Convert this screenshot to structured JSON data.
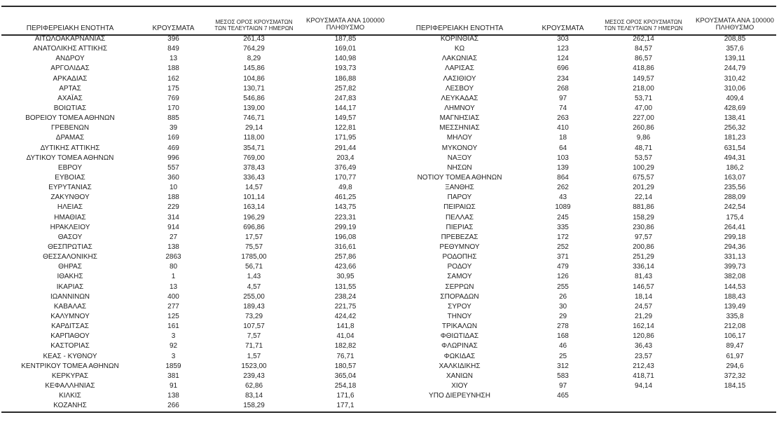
{
  "colors": {
    "background": "#ffffff",
    "text": "#1f1f1f",
    "rule_line": "#2a2a2a"
  },
  "tables": [
    {
      "headers": {
        "region": "ΠΕΡΙΦΕΡΕΙΑΚΗ ΕΝΟΤΗΤΑ",
        "cases": "ΚΡΟΥΣΜΑΤΑ",
        "avg7": "ΜΕΣΟΣ ΟΡΟΣ ΚΡΟΥΣΜΑΤΩΝ\nΤΩΝ ΤΕΛΕΥΤΑΙΩΝ 7 ΗΜΕΡΩΝ",
        "per100k": "ΚΡΟΥΣΜΑΤΑ ΑΝΑ 100000\nΠΛΗΘΥΣΜΟ"
      },
      "rows": [
        [
          "ΑΙΤΩΛΟΑΚΑΡΝΑΝΙΑΣ",
          "396",
          "261,43",
          "187,85"
        ],
        [
          "ΑΝΑΤΟΛΙΚΗΣ ΑΤΤΙΚΗΣ",
          "849",
          "764,29",
          "169,01"
        ],
        [
          "ΑΝΔΡΟΥ",
          "13",
          "8,29",
          "140,98"
        ],
        [
          "ΑΡΓΟΛΙΔΑΣ",
          "188",
          "145,86",
          "193,73"
        ],
        [
          "ΑΡΚΑΔΙΑΣ",
          "162",
          "104,86",
          "186,88"
        ],
        [
          "ΑΡΤΑΣ",
          "175",
          "130,71",
          "257,82"
        ],
        [
          "ΑΧΑΪΑΣ",
          "769",
          "546,86",
          "247,83"
        ],
        [
          "ΒΟΙΩΤΙΑΣ",
          "170",
          "139,00",
          "144,17"
        ],
        [
          "ΒΟΡΕΙΟΥ ΤΟΜΕΑ ΑΘΗΝΩΝ",
          "885",
          "746,71",
          "149,57"
        ],
        [
          "ΓΡΕΒΕΝΩΝ",
          "39",
          "29,14",
          "122,81"
        ],
        [
          "ΔΡΑΜΑΣ",
          "169",
          "118,00",
          "171,95"
        ],
        [
          "ΔΥΤΙΚΗΣ ΑΤΤΙΚΗΣ",
          "469",
          "354,71",
          "291,44"
        ],
        [
          "ΔΥΤΙΚΟΥ ΤΟΜΕΑ ΑΘΗΝΩΝ",
          "996",
          "769,00",
          "203,4"
        ],
        [
          "ΕΒΡΟΥ",
          "557",
          "378,43",
          "376,49"
        ],
        [
          "ΕΥΒΟΙΑΣ",
          "360",
          "336,43",
          "170,77"
        ],
        [
          "ΕΥΡΥΤΑΝΙΑΣ",
          "10",
          "14,57",
          "49,8"
        ],
        [
          "ΖΑΚΥΝΘΟΥ",
          "188",
          "101,14",
          "461,25"
        ],
        [
          "ΗΛΕΙΑΣ",
          "229",
          "163,14",
          "143,75"
        ],
        [
          "ΗΜΑΘΙΑΣ",
          "314",
          "196,29",
          "223,31"
        ],
        [
          "ΗΡΑΚΛΕΙΟΥ",
          "914",
          "696,86",
          "299,19"
        ],
        [
          "ΘΑΣΟΥ",
          "27",
          "17,57",
          "196,08"
        ],
        [
          "ΘΕΣΠΡΩΤΙΑΣ",
          "138",
          "75,57",
          "316,61"
        ],
        [
          "ΘΕΣΣΑΛΟΝΙΚΗΣ",
          "2863",
          "1785,00",
          "257,86"
        ],
        [
          "ΘΗΡΑΣ",
          "80",
          "56,71",
          "423,66"
        ],
        [
          "ΙΘΑΚΗΣ",
          "1",
          "1,43",
          "30,95"
        ],
        [
          "ΙΚΑΡΙΑΣ",
          "13",
          "4,57",
          "131,55"
        ],
        [
          "ΙΩΑΝΝΙΝΩΝ",
          "400",
          "255,00",
          "238,24"
        ],
        [
          "ΚΑΒΑΛΑΣ",
          "277",
          "189,43",
          "221,75"
        ],
        [
          "ΚΑΛΥΜΝΟΥ",
          "125",
          "73,29",
          "424,42"
        ],
        [
          "ΚΑΡΔΙΤΣΑΣ",
          "161",
          "107,57",
          "141,8"
        ],
        [
          "ΚΑΡΠΑΘΟΥ",
          "3",
          "7,57",
          "41,04"
        ],
        [
          "ΚΑΣΤΟΡΙΑΣ",
          "92",
          "71,71",
          "182,82"
        ],
        [
          "ΚΕΑΣ - ΚΥΘΝΟΥ",
          "3",
          "1,57",
          "76,71"
        ],
        [
          "ΚΕΝΤΡΙΚΟΥ ΤΟΜΕΑ ΑΘΗΝΩΝ",
          "1859",
          "1523,00",
          "180,57"
        ],
        [
          "ΚΕΡΚΥΡΑΣ",
          "381",
          "239,43",
          "365,04"
        ],
        [
          "ΚΕΦΑΛΛΗΝΙΑΣ",
          "91",
          "62,86",
          "254,18"
        ],
        [
          "ΚΙΛΚΙΣ",
          "138",
          "83,14",
          "171,6"
        ],
        [
          "ΚΟΖΑΝΗΣ",
          "266",
          "158,29",
          "177,1"
        ]
      ]
    },
    {
      "headers": {
        "region": "ΠΕΡΙΦΕΡΕΙΑΚΗ ΕΝΟΤΗΤΑ",
        "cases": "ΚΡΟΥΣΜΑΤΑ",
        "avg7": "ΜΕΣΟΣ ΟΡΟΣ ΚΡΟΥΣΜΑΤΩΝ\nΤΩΝ ΤΕΛΕΥΤΑΙΩΝ 7 ΗΜΕΡΩΝ",
        "per100k": "ΚΡΟΥΣΜΑΤΑ ΑΝΑ 100000\nΠΛΗΘΥΣΜΟ"
      },
      "rows": [
        [
          "ΚΟΡΙΝΘΙΑΣ",
          "303",
          "262,14",
          "208,85"
        ],
        [
          "ΚΩ",
          "123",
          "84,57",
          "357,6"
        ],
        [
          "ΛΑΚΩΝΙΑΣ",
          "124",
          "86,57",
          "139,11"
        ],
        [
          "ΛΑΡΙΣΑΣ",
          "696",
          "418,86",
          "244,79"
        ],
        [
          "ΛΑΣΙΘΙΟΥ",
          "234",
          "149,57",
          "310,42"
        ],
        [
          "ΛΕΣΒΟΥ",
          "268",
          "218,00",
          "310,06"
        ],
        [
          "ΛΕΥΚΑΔΑΣ",
          "97",
          "53,71",
          "409,4"
        ],
        [
          "ΛΗΜΝΟΥ",
          "74",
          "47,00",
          "428,69"
        ],
        [
          "ΜΑΓΝΗΣΙΑΣ",
          "263",
          "227,00",
          "138,41"
        ],
        [
          "ΜΕΣΣΗΝΙΑΣ",
          "410",
          "260,86",
          "256,32"
        ],
        [
          "ΜΗΛΟΥ",
          "18",
          "9,86",
          "181,23"
        ],
        [
          "ΜΥΚΟΝΟΥ",
          "64",
          "48,71",
          "631,54"
        ],
        [
          "ΝΑΞΟΥ",
          "103",
          "53,57",
          "494,31"
        ],
        [
          "ΝΗΣΩΝ",
          "139",
          "100,29",
          "186,2"
        ],
        [
          "ΝΟΤΙΟΥ ΤΟΜΕΑ ΑΘΗΝΩΝ",
          "864",
          "675,57",
          "163,07"
        ],
        [
          "ΞΑΝΘΗΣ",
          "262",
          "201,29",
          "235,56"
        ],
        [
          "ΠΑΡΟΥ",
          "43",
          "22,14",
          "288,09"
        ],
        [
          "ΠΕΙΡΑΙΩΣ",
          "1089",
          "881,86",
          "242,54"
        ],
        [
          "ΠΕΛΛΑΣ",
          "245",
          "158,29",
          "175,4"
        ],
        [
          "ΠΙΕΡΙΑΣ",
          "335",
          "230,86",
          "264,41"
        ],
        [
          "ΠΡΕΒΕΖΑΣ",
          "172",
          "97,57",
          "299,18"
        ],
        [
          "ΡΕΘΥΜΝΟΥ",
          "252",
          "200,86",
          "294,36"
        ],
        [
          "ΡΟΔΟΠΗΣ",
          "371",
          "251,29",
          "331,13"
        ],
        [
          "ΡΟΔΟΥ",
          "479",
          "336,14",
          "399,73"
        ],
        [
          "ΣΑΜΟΥ",
          "126",
          "81,43",
          "382,08"
        ],
        [
          "ΣΕΡΡΩΝ",
          "255",
          "146,57",
          "144,53"
        ],
        [
          "ΣΠΟΡΑΔΩΝ",
          "26",
          "18,14",
          "188,43"
        ],
        [
          "ΣΥΡΟΥ",
          "30",
          "24,57",
          "139,49"
        ],
        [
          "ΤΗΝΟΥ",
          "29",
          "21,29",
          "335,8"
        ],
        [
          "ΤΡΙΚΑΛΩΝ",
          "278",
          "162,14",
          "212,08"
        ],
        [
          "ΦΘΙΩΤΙΔΑΣ",
          "168",
          "120,86",
          "106,17"
        ],
        [
          "ΦΛΩΡΙΝΑΣ",
          "46",
          "36,43",
          "89,47"
        ],
        [
          "ΦΩΚΙΔΑΣ",
          "25",
          "23,57",
          "61,97"
        ],
        [
          "ΧΑΛΚΙΔΙΚΗΣ",
          "312",
          "212,43",
          "294,6"
        ],
        [
          "ΧΑΝΙΩΝ",
          "583",
          "418,71",
          "372,32"
        ],
        [
          "ΧΙΟΥ",
          "97",
          "94,14",
          "184,15"
        ],
        [
          "ΥΠΟ ΔΙΕΡΕΥΝΗΣΗ",
          "465",
          "",
          ""
        ]
      ]
    }
  ]
}
